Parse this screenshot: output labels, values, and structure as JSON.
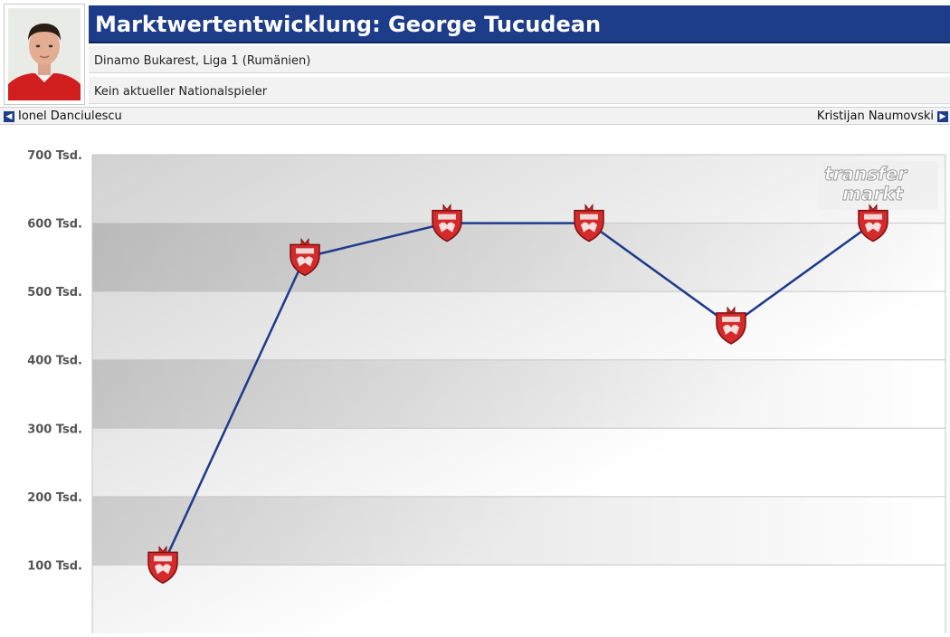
{
  "header": {
    "title": "Marktwertentwicklung: George Tucudean",
    "club_league": "Dinamo Bukarest, Liga 1 (Rumänien)",
    "national_status": "Kein aktueller Nationalspieler"
  },
  "nav": {
    "prev_player": "Ionel Danciulescu",
    "next_player": "Kristijan Naumovski"
  },
  "watermark": {
    "line1": "transfer",
    "line2": "markt"
  },
  "colors": {
    "header_bg": "#1d3c8a",
    "line": "#1f3a8a",
    "crest": "#d42a2a"
  },
  "chart_data": {
    "type": "line",
    "y_tick_labels": [
      "700 Tsd.",
      "600 Tsd.",
      "500 Tsd.",
      "400 Tsd.",
      "300 Tsd.",
      "200 Tsd.",
      "100 Tsd."
    ],
    "y_tick_values": [
      700,
      600,
      500,
      400,
      300,
      200,
      100
    ],
    "ylim": [
      0,
      700
    ],
    "x": [
      1,
      2,
      3,
      4,
      5,
      6
    ],
    "values": [
      100,
      550,
      600,
      600,
      450,
      600
    ],
    "marker": "dinamo-crest",
    "grid": true
  }
}
